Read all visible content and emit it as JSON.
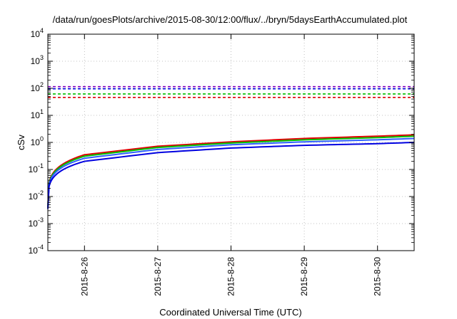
{
  "chart_data": {
    "type": "line",
    "title": "/data/run/goesPlots/archive/2015-08-30/12:00/flux/../bryn/5daysEarthAccumulated.plot",
    "xlabel": "Coordinated Universal Time (UTC)",
    "ylabel": "cSv",
    "yscale": "log",
    "ylim": [
      0.0001,
      10000
    ],
    "xlim": [
      "2015-08-25T12:00",
      "2015-08-30T12:00"
    ],
    "x_ticks": [
      "2015-8-26",
      "2015-8-27",
      "2015-8-28",
      "2015-8-29",
      "2015-8-30"
    ],
    "y_ticks": [
      {
        "base": "10",
        "exp": "-4",
        "value": 0.0001
      },
      {
        "base": "10",
        "exp": "-3",
        "value": 0.001
      },
      {
        "base": "10",
        "exp": "-2",
        "value": 0.01
      },
      {
        "base": "10",
        "exp": "-1",
        "value": 0.1
      },
      {
        "base": "10",
        "exp": "0",
        "value": 1
      },
      {
        "base": "10",
        "exp": "1",
        "value": 10
      },
      {
        "base": "10",
        "exp": "2",
        "value": 100
      },
      {
        "base": "10",
        "exp": "3",
        "value": 1000
      },
      {
        "base": "10",
        "exp": "4",
        "value": 10000
      }
    ],
    "grid": true,
    "legend": "none",
    "series": [
      {
        "style": "dashed",
        "color": "#8000c0",
        "value": 115
      },
      {
        "style": "dashed",
        "color": "#0000e0",
        "value": 96
      },
      {
        "style": "dashed",
        "color": "#00c000",
        "value": 62
      },
      {
        "style": "dashed",
        "color": "#e00000",
        "value": 46
      },
      {
        "style": "solid",
        "color": "#e00000",
        "x": [
          "2015-08-25T12:00",
          "2015-08-26T00:00",
          "2015-08-27T00:00",
          "2015-08-28T00:00",
          "2015-08-29T00:00",
          "2015-08-30T00:00",
          "2015-08-30T12:00"
        ],
        "values": [
          0.004,
          0.35,
          0.72,
          1.05,
          1.4,
          1.7,
          1.9
        ]
      },
      {
        "style": "solid",
        "color": "#00c000",
        "x": [
          "2015-08-25T12:00",
          "2015-08-26T00:00",
          "2015-08-27T00:00",
          "2015-08-28T00:00",
          "2015-08-29T00:00",
          "2015-08-30T00:00",
          "2015-08-30T12:00"
        ],
        "values": [
          0.004,
          0.31,
          0.65,
          0.95,
          1.25,
          1.5,
          1.7
        ]
      },
      {
        "style": "solid",
        "color": "#3060ff",
        "x": [
          "2015-08-25T12:00",
          "2015-08-26T00:00",
          "2015-08-27T00:00",
          "2015-08-28T00:00",
          "2015-08-29T00:00",
          "2015-08-30T00:00",
          "2015-08-30T12:00"
        ],
        "values": [
          0.004,
          0.26,
          0.55,
          0.82,
          1.05,
          1.25,
          1.4
        ]
      },
      {
        "style": "solid",
        "color": "#0000e0",
        "x": [
          "2015-08-25T12:00",
          "2015-08-26T00:00",
          "2015-08-27T00:00",
          "2015-08-28T00:00",
          "2015-08-29T00:00",
          "2015-08-30T00:00",
          "2015-08-30T12:00"
        ],
        "values": [
          0.0035,
          0.2,
          0.42,
          0.62,
          0.78,
          0.9,
          1.0
        ]
      }
    ]
  }
}
